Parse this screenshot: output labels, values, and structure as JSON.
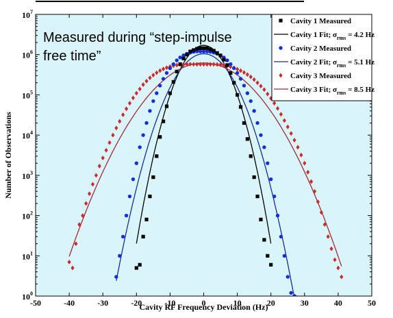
{
  "chart_data": {
    "type": "scatter",
    "xlabel": "Cavity RF Frequency Deviation (Hz)",
    "ylabel": "Number of Observations",
    "xlim": [
      -50,
      50
    ],
    "ylim": [
      1,
      10000000
    ],
    "yscale": "log",
    "xticks": [
      "-50",
      "-40",
      "-30",
      "-20",
      "-10",
      "0",
      "10",
      "20",
      "30",
      "40",
      "50"
    ],
    "yticks": [
      {
        "base": "10",
        "exp": "0"
      },
      {
        "base": "10",
        "exp": "1"
      },
      {
        "base": "10",
        "exp": "2"
      },
      {
        "base": "10",
        "exp": "3"
      },
      {
        "base": "10",
        "exp": "4"
      },
      {
        "base": "10",
        "exp": "5"
      },
      {
        "base": "10",
        "exp": "6"
      },
      {
        "base": "10",
        "exp": "7"
      }
    ],
    "annotation": [
      "Measured during “step-impulse",
      "free time”"
    ],
    "grid": false,
    "legend_position": "top-right",
    "background": "#d9f5f9",
    "series": [
      {
        "name": "Cavity 1 Measured",
        "kind": "marker",
        "marker": "square",
        "color": "#000000",
        "points": [
          [
            -20,
            5
          ],
          [
            -19,
            6
          ],
          [
            -18,
            30
          ],
          [
            -17,
            80
          ],
          [
            -16,
            300
          ],
          [
            -15,
            900
          ],
          [
            -14,
            3000
          ],
          [
            -13,
            9000
          ],
          [
            -12,
            22000
          ],
          [
            -11,
            52000
          ],
          [
            -10,
            110000
          ],
          [
            -9,
            210000
          ],
          [
            -8,
            380000
          ],
          [
            -7,
            580000
          ],
          [
            -6,
            800000
          ],
          [
            -5,
            1000000
          ],
          [
            -4,
            1200000
          ],
          [
            -3,
            1300000
          ],
          [
            -2,
            1400000
          ],
          [
            -1,
            1450000
          ],
          [
            0,
            1450000
          ],
          [
            1,
            1450000
          ],
          [
            2,
            1350000
          ],
          [
            3,
            1250000
          ],
          [
            4,
            1100000
          ],
          [
            5,
            950000
          ],
          [
            6,
            750000
          ],
          [
            7,
            550000
          ],
          [
            8,
            350000
          ],
          [
            9,
            200000
          ],
          [
            10,
            100000
          ],
          [
            11,
            50000
          ],
          [
            12,
            20000
          ],
          [
            13,
            8000
          ],
          [
            14,
            3000
          ],
          [
            15,
            900
          ],
          [
            16,
            300
          ],
          [
            17,
            80
          ],
          [
            18,
            25
          ],
          [
            19,
            10
          ],
          [
            20,
            6
          ]
        ]
      },
      {
        "name": "Cavity 1 Fit; σrms = 4.2 Hz",
        "legend_text": {
          "prefix": "Cavity 1 Fit; σ",
          "sub": "rms",
          "suffix": " =  4.2 Hz"
        },
        "kind": "line",
        "color": "#000000",
        "peak": 1700000,
        "mean": 0,
        "sigma": 4.2,
        "range": [
          -20,
          20
        ]
      },
      {
        "name": "Cavity 2 Measured",
        "kind": "marker",
        "marker": "circle",
        "color": "#1030e0",
        "points": [
          [
            -26,
            3
          ],
          [
            -25,
            10
          ],
          [
            -24,
            30
          ],
          [
            -23,
            100
          ],
          [
            -22,
            300
          ],
          [
            -21,
            800
          ],
          [
            -20,
            2000
          ],
          [
            -19,
            5000
          ],
          [
            -18,
            10000
          ],
          [
            -17,
            20000
          ],
          [
            -16,
            40000
          ],
          [
            -15,
            70000
          ],
          [
            -14,
            110000
          ],
          [
            -13,
            170000
          ],
          [
            -12,
            250000
          ],
          [
            -11,
            350000
          ],
          [
            -10,
            460000
          ],
          [
            -9,
            580000
          ],
          [
            -8,
            720000
          ],
          [
            -7,
            850000
          ],
          [
            -6,
            960000
          ],
          [
            -5,
            1050000
          ],
          [
            -4,
            1120000
          ],
          [
            -3,
            1170000
          ],
          [
            -2,
            1200000
          ],
          [
            -1,
            1200000
          ],
          [
            0,
            1200000
          ],
          [
            1,
            1200000
          ],
          [
            2,
            1170000
          ],
          [
            3,
            1120000
          ],
          [
            4,
            1050000
          ],
          [
            5,
            960000
          ],
          [
            6,
            850000
          ],
          [
            7,
            720000
          ],
          [
            8,
            580000
          ],
          [
            9,
            460000
          ],
          [
            10,
            350000
          ],
          [
            11,
            250000
          ],
          [
            12,
            170000
          ],
          [
            13,
            110000
          ],
          [
            14,
            70000
          ],
          [
            15,
            40000
          ],
          [
            16,
            20000
          ],
          [
            17,
            10000
          ],
          [
            18,
            5000
          ],
          [
            19,
            2000
          ],
          [
            20,
            800
          ],
          [
            21,
            300
          ],
          [
            22,
            100
          ],
          [
            23,
            30
          ],
          [
            24,
            10
          ],
          [
            25,
            3
          ],
          [
            26,
            1.2
          ],
          [
            27,
            1
          ]
        ]
      },
      {
        "name": "Cavity 2 Fit; σrms = 5.1 Hz",
        "legend_text": {
          "prefix": "Cavity 2 Fit; σ",
          "sub": "rms",
          "suffix": " =  5.1 Hz"
        },
        "kind": "line",
        "color": "#1a2a9a",
        "peak": 1050000,
        "mean": 0,
        "sigma": 5.1,
        "range": [
          -26,
          28
        ]
      },
      {
        "name": "Cavity 3 Measured",
        "kind": "marker",
        "marker": "diamond",
        "color": "#cc2a2a",
        "points": [
          [
            -40,
            7
          ],
          [
            -39,
            5
          ],
          [
            -38,
            20
          ],
          [
            -37,
            60
          ],
          [
            -36,
            100
          ],
          [
            -35,
            200
          ],
          [
            -34,
            350
          ],
          [
            -33,
            600
          ],
          [
            -32,
            1000
          ],
          [
            -31,
            1700
          ],
          [
            -30,
            2700
          ],
          [
            -29,
            4200
          ],
          [
            -28,
            6500
          ],
          [
            -27,
            10000
          ],
          [
            -26,
            15000
          ],
          [
            -25,
            22000
          ],
          [
            -24,
            32000
          ],
          [
            -23,
            45000
          ],
          [
            -22,
            62000
          ],
          [
            -21,
            84000
          ],
          [
            -20,
            110000
          ],
          [
            -19,
            140000
          ],
          [
            -18,
            180000
          ],
          [
            -17,
            220000
          ],
          [
            -16,
            265000
          ],
          [
            -15,
            310000
          ],
          [
            -14,
            355000
          ],
          [
            -13,
            400000
          ],
          [
            -12,
            440000
          ],
          [
            -11,
            475000
          ],
          [
            -10,
            505000
          ],
          [
            -9,
            530000
          ],
          [
            -8,
            550000
          ],
          [
            -7,
            565000
          ],
          [
            -6,
            575000
          ],
          [
            -5,
            580000
          ],
          [
            -4,
            580000
          ],
          [
            -3,
            575000
          ],
          [
            -2,
            575000
          ],
          [
            -1,
            575000
          ],
          [
            0,
            575000
          ],
          [
            1,
            575000
          ],
          [
            2,
            575000
          ],
          [
            3,
            575000
          ],
          [
            4,
            570000
          ],
          [
            5,
            560000
          ],
          [
            6,
            545000
          ],
          [
            7,
            525000
          ],
          [
            8,
            500000
          ],
          [
            9,
            470000
          ],
          [
            10,
            435000
          ],
          [
            11,
            400000
          ],
          [
            12,
            360000
          ],
          [
            13,
            320000
          ],
          [
            14,
            280000
          ],
          [
            15,
            240000
          ],
          [
            16,
            200000
          ],
          [
            17,
            165000
          ],
          [
            18,
            135000
          ],
          [
            19,
            105000
          ],
          [
            20,
            82000
          ],
          [
            21,
            62000
          ],
          [
            22,
            46000
          ],
          [
            23,
            33000
          ],
          [
            24,
            23000
          ],
          [
            25,
            16000
          ],
          [
            26,
            11000
          ],
          [
            27,
            7500
          ],
          [
            28,
            5000
          ],
          [
            29,
            3200
          ],
          [
            30,
            2000
          ],
          [
            31,
            1200
          ],
          [
            32,
            700
          ],
          [
            33,
            400
          ],
          [
            34,
            220
          ],
          [
            35,
            120
          ],
          [
            36,
            60
          ],
          [
            37,
            30
          ],
          [
            38,
            15
          ],
          [
            39,
            8
          ],
          [
            40,
            5
          ],
          [
            41,
            3
          ]
        ]
      },
      {
        "name": "Cavity 3 Fit; σrms = 8.5 Hz",
        "legend_text": {
          "prefix": "Cavity 3 Fit; σ",
          "sub": "rms",
          "suffix": " =  8.5 Hz"
        },
        "kind": "line",
        "color": "#a02a3a",
        "peak": 620000,
        "mean": 0,
        "sigma": 8.5,
        "range": [
          -40,
          41
        ]
      }
    ]
  }
}
